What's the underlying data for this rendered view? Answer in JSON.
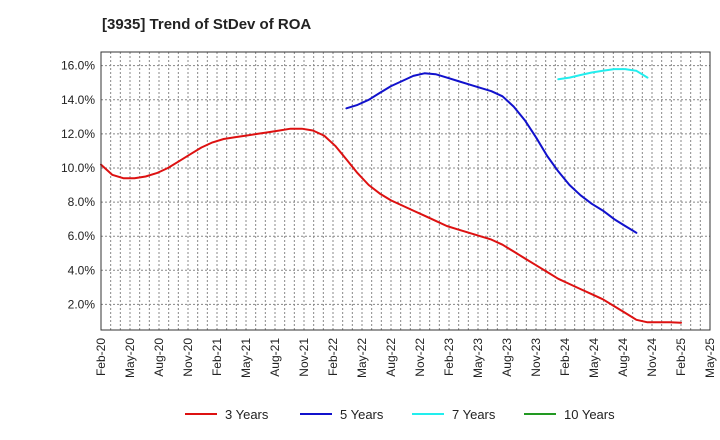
{
  "chart_data": {
    "type": "line",
    "title": "[3935]  Trend of StDev of ROA",
    "xlabel": "",
    "ylabel": "",
    "ylim": [
      0.5,
      16.8
    ],
    "yticks": [
      2.0,
      4.0,
      6.0,
      8.0,
      10.0,
      12.0,
      14.0,
      16.0
    ],
    "ytick_labels": [
      "2.0%",
      "4.0%",
      "6.0%",
      "8.0%",
      "10.0%",
      "12.0%",
      "14.0%",
      "16.0%"
    ],
    "x_tick_labels": [
      "Feb-20",
      "May-20",
      "Aug-20",
      "Nov-20",
      "Feb-21",
      "May-21",
      "Aug-21",
      "Nov-21",
      "Feb-22",
      "May-22",
      "Aug-22",
      "Nov-22",
      "Feb-23",
      "May-23",
      "Aug-23",
      "Nov-23",
      "Feb-24",
      "May-24",
      "Aug-24",
      "Nov-24",
      "Feb-25",
      "May-25"
    ],
    "grid": true,
    "legend_position": "bottom",
    "series": [
      {
        "name": "3 Years",
        "color": "#dd1111",
        "values": [
          10.2,
          9.6,
          9.4,
          9.4,
          9.5,
          9.7,
          10.0,
          10.4,
          10.8,
          11.2,
          11.5,
          11.7,
          11.8,
          11.9,
          12.0,
          12.1,
          12.2,
          12.3,
          12.3,
          12.2,
          11.9,
          11.3,
          10.5,
          9.7,
          9.0,
          8.5,
          8.1,
          7.8,
          7.5,
          7.2,
          6.9,
          6.6,
          6.4,
          6.2,
          6.0,
          5.8,
          5.5,
          5.1,
          4.7,
          4.3,
          3.9,
          3.5,
          3.2,
          2.9,
          2.6,
          2.3,
          1.9,
          1.5,
          1.1,
          0.95,
          0.95,
          0.95,
          0.93
        ]
      },
      {
        "name": "5 Years",
        "color": "#1111cc",
        "values": [
          null,
          null,
          null,
          null,
          null,
          null,
          null,
          null,
          null,
          null,
          null,
          null,
          null,
          null,
          null,
          null,
          null,
          null,
          null,
          null,
          null,
          null,
          13.5,
          13.7,
          14.0,
          14.4,
          14.8,
          15.1,
          15.4,
          15.55,
          15.5,
          15.3,
          15.1,
          14.9,
          14.7,
          14.5,
          14.2,
          13.6,
          12.8,
          11.8,
          10.7,
          9.8,
          9.0,
          8.4,
          7.9,
          7.5,
          7.0,
          6.6,
          6.2,
          null,
          null,
          null,
          null
        ]
      },
      {
        "name": "7 Years",
        "color": "#22eeee",
        "values": [
          null,
          null,
          null,
          null,
          null,
          null,
          null,
          null,
          null,
          null,
          null,
          null,
          null,
          null,
          null,
          null,
          null,
          null,
          null,
          null,
          null,
          null,
          null,
          null,
          null,
          null,
          null,
          null,
          null,
          null,
          null,
          null,
          null,
          null,
          null,
          null,
          null,
          null,
          null,
          null,
          null,
          15.2,
          15.3,
          15.45,
          15.6,
          15.7,
          15.8,
          15.8,
          15.7,
          15.3,
          null,
          null,
          null
        ]
      },
      {
        "name": "10 Years",
        "color": "#229922",
        "values": []
      }
    ]
  }
}
